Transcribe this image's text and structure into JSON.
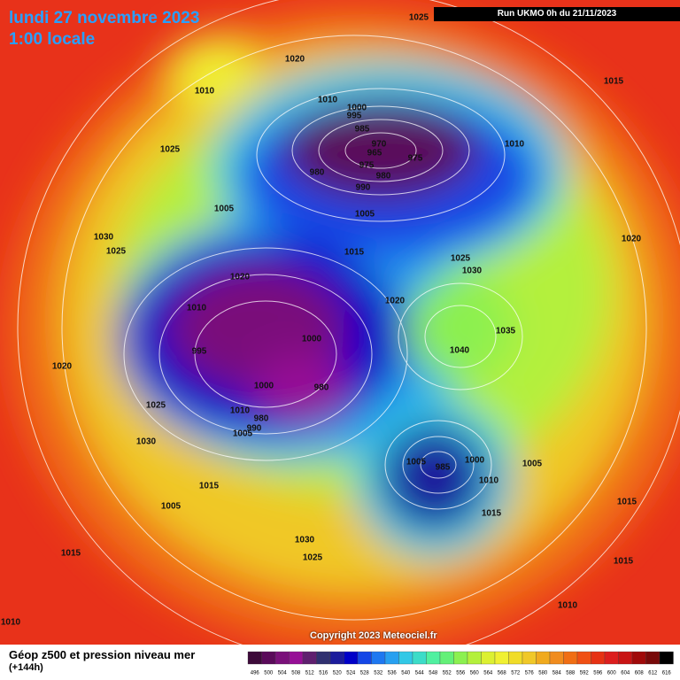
{
  "header": {
    "date": "lundi 27 novembre 2023",
    "time": "1:00 locale",
    "run": "Run UKMO 0h du 21/11/2023"
  },
  "copyright": "Copyright 2023 Meteociel.fr",
  "legend": {
    "title": "Géop z500 et pression niveau mer",
    "subtitle": "(+144h)",
    "levels": [
      496,
      500,
      504,
      508,
      512,
      516,
      520,
      524,
      528,
      532,
      536,
      540,
      544,
      548,
      552,
      556,
      560,
      564,
      568,
      572,
      576,
      580,
      584,
      588,
      592,
      596,
      600,
      604,
      608,
      612,
      616
    ],
    "colors": [
      "#3d0a3a",
      "#5a0a5a",
      "#7a107a",
      "#960f96",
      "#5f1f6f",
      "#303070",
      "#1c1c9c",
      "#0000c8",
      "#1446e6",
      "#1e78f0",
      "#28a0f0",
      "#32c8e6",
      "#3cdcc8",
      "#50f0a0",
      "#64f078",
      "#8cf050",
      "#b4f03c",
      "#dcf032",
      "#f0f032",
      "#f0dc28",
      "#f0c828",
      "#f0aa1e",
      "#f08c1e",
      "#f06e14",
      "#f05014",
      "#e63214",
      "#dc1e1e",
      "#c81414",
      "#a00a0a",
      "#780a0a",
      "#000000"
    ]
  },
  "pressure_labels": [
    1025,
    1020,
    1010,
    1015,
    1025,
    1010,
    1000,
    995,
    985,
    970,
    965,
    975,
    975,
    980,
    980,
    990,
    1010,
    1005,
    1005,
    1030,
    1025,
    1015,
    1025,
    1030,
    1020,
    1020,
    1010,
    1020,
    1035,
    1000,
    1040,
    995,
    1020,
    980,
    1000,
    1025,
    1010,
    980,
    990,
    1005,
    1030,
    1005,
    985,
    1000,
    1005,
    1010,
    1015,
    1005,
    1015,
    1015,
    1030,
    1015,
    1025,
    1015,
    1010,
    1010
  ]
}
